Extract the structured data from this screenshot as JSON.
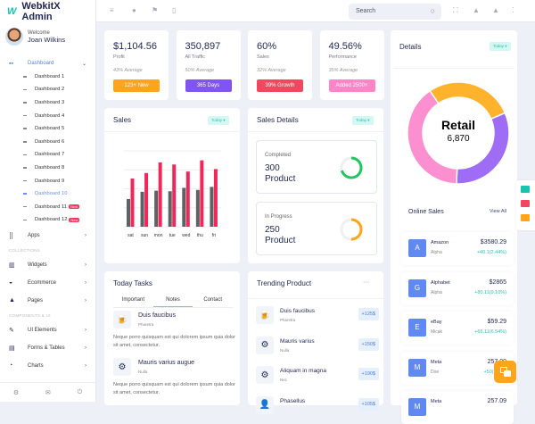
{
  "app": {
    "logo_mark": "W",
    "title": "WebkitX Admin"
  },
  "user": {
    "welcome": "Welcome",
    "name": "Joan Wilkins"
  },
  "sidebar": {
    "dashboard": "Dashboard",
    "subs": [
      {
        "label": "Dashboard 1"
      },
      {
        "label": "Dashboard 2"
      },
      {
        "label": "Dashboard 3"
      },
      {
        "label": "Dashboard 4"
      },
      {
        "label": "Dashboard 5"
      },
      {
        "label": "Dashboard 6"
      },
      {
        "label": "Dashboard 7"
      },
      {
        "label": "Dashboard 8"
      },
      {
        "label": "Dashboard 9"
      },
      {
        "label": "Dashboard 10",
        "active": true
      },
      {
        "label": "Dashboard 11",
        "badge": "New"
      },
      {
        "label": "Dashboard 12",
        "badge": "New"
      }
    ],
    "apps": "Apps",
    "collections": "COLLECTIONS",
    "widgets": "Widgets",
    "ecommerce": "Ecommerce",
    "pages": "Pages",
    "components": "COMPONENTS & UI",
    "ui": "UI Elements",
    "forms": "Forms & Tables",
    "charts": "Charts"
  },
  "topbar": {
    "search_placeholder": "Search"
  },
  "stats": [
    {
      "value": "$1,104.56",
      "label": "Profit",
      "avg": "43% Average",
      "button": "123+ New",
      "color": "#ffa41b"
    },
    {
      "value": "350,897",
      "label": "All Traffic",
      "avg": "50% Average",
      "button": "365 Days",
      "color": "#8155f5"
    },
    {
      "value": "60%",
      "label": "Sales",
      "avg": "32% Average",
      "button": "39% Growth",
      "color": "#f4475f"
    },
    {
      "value": "49.56%",
      "label": "Performance",
      "avg": "35% Average",
      "button": "Added 2500+",
      "color": "#ff85c8"
    }
  ],
  "sales": {
    "title": "Sales",
    "filter": "Today ▾"
  },
  "chart_data": {
    "type": "bar",
    "categories": [
      "sat",
      "sun",
      "mon",
      "tue",
      "wed",
      "thu",
      "fri"
    ],
    "series": [
      {
        "values": [
          1.46,
          1.84,
          1.9,
          1.87,
          2.05,
          1.94,
          2.1
        ],
        "color": "#5d6266"
      },
      {
        "values": [
          2.54,
          2.83,
          3.39,
          3.28,
          2.91,
          3.5,
          3.04
        ],
        "color": "#f0285a"
      }
    ],
    "ylim": [
      0,
      4
    ],
    "grid": true
  },
  "sales_details": {
    "title": "Sales Details",
    "filter": "Today ▾",
    "items": [
      {
        "label": "Completed",
        "value": "300",
        "unit": "Product",
        "color": "#22c55e",
        "percent": 70
      },
      {
        "label": "In Progress",
        "value": "250",
        "unit": "Product",
        "color": "#ffa41b",
        "percent": 50
      }
    ]
  },
  "details": {
    "title": "Details",
    "filter": "Today ▾",
    "center_label": "Retail",
    "center_value": "6,870",
    "segments": [
      {
        "color": "#ffb22b",
        "percent": 28
      },
      {
        "color": "#9f6cf5",
        "percent": 32
      },
      {
        "color": "#fb8fd0",
        "percent": 40
      }
    ]
  },
  "online_sales": {
    "title": "Online Sales",
    "view_all": "View All",
    "items": [
      {
        "letter": "A",
        "name": "Amazon",
        "sub": "Alpha",
        "price": "$3580.29",
        "change": "+40.1(2.44%)"
      },
      {
        "letter": "G",
        "name": "Alphabet",
        "sub": "Alpha",
        "price": "$2865",
        "change": "+80.11(9.10%)"
      },
      {
        "letter": "E",
        "name": "eBay",
        "sub": "Micak",
        "price": "$59.29",
        "change": "+66.11(6.54%)"
      },
      {
        "letter": "M",
        "name": "Meta",
        "sub": "Doe",
        "price": "257.09",
        "change": "+50(7.5%)"
      },
      {
        "letter": "M",
        "name": "Meta",
        "sub": "",
        "price": "257.09",
        "change": ""
      }
    ]
  },
  "tasks": {
    "title": "Today Tasks",
    "tabs": [
      "Important",
      "Notes",
      "Contact"
    ],
    "items": [
      {
        "title": "Duis faucibus",
        "sub": "Pharetra",
        "text": "Neque porro quisquam est qui dolorem ipsum quia dolor sit amet, consectetur.",
        "icon": "🍺"
      },
      {
        "title": "Mauris varius augue",
        "sub": "Nulla",
        "text": "Neque porro quisquam est qui dolorem ipsum quia dolor sit amet, consectetur.",
        "icon": "⚙"
      }
    ]
  },
  "trending": {
    "title": "Trending Product",
    "more": "···",
    "items": [
      {
        "title": "Duis faucibus",
        "sub": "Pharetra",
        "price": "+125$",
        "icon": "🍺"
      },
      {
        "title": "Mauris varius",
        "sub": "Nulla",
        "price": "+150$",
        "icon": "⚙"
      },
      {
        "title": "Aliquam in magna",
        "sub": "Nec",
        "price": "+190$",
        "icon": "⚙"
      },
      {
        "title": "Phasellus",
        "sub": "",
        "price": "+105$",
        "icon": "👤"
      }
    ]
  }
}
